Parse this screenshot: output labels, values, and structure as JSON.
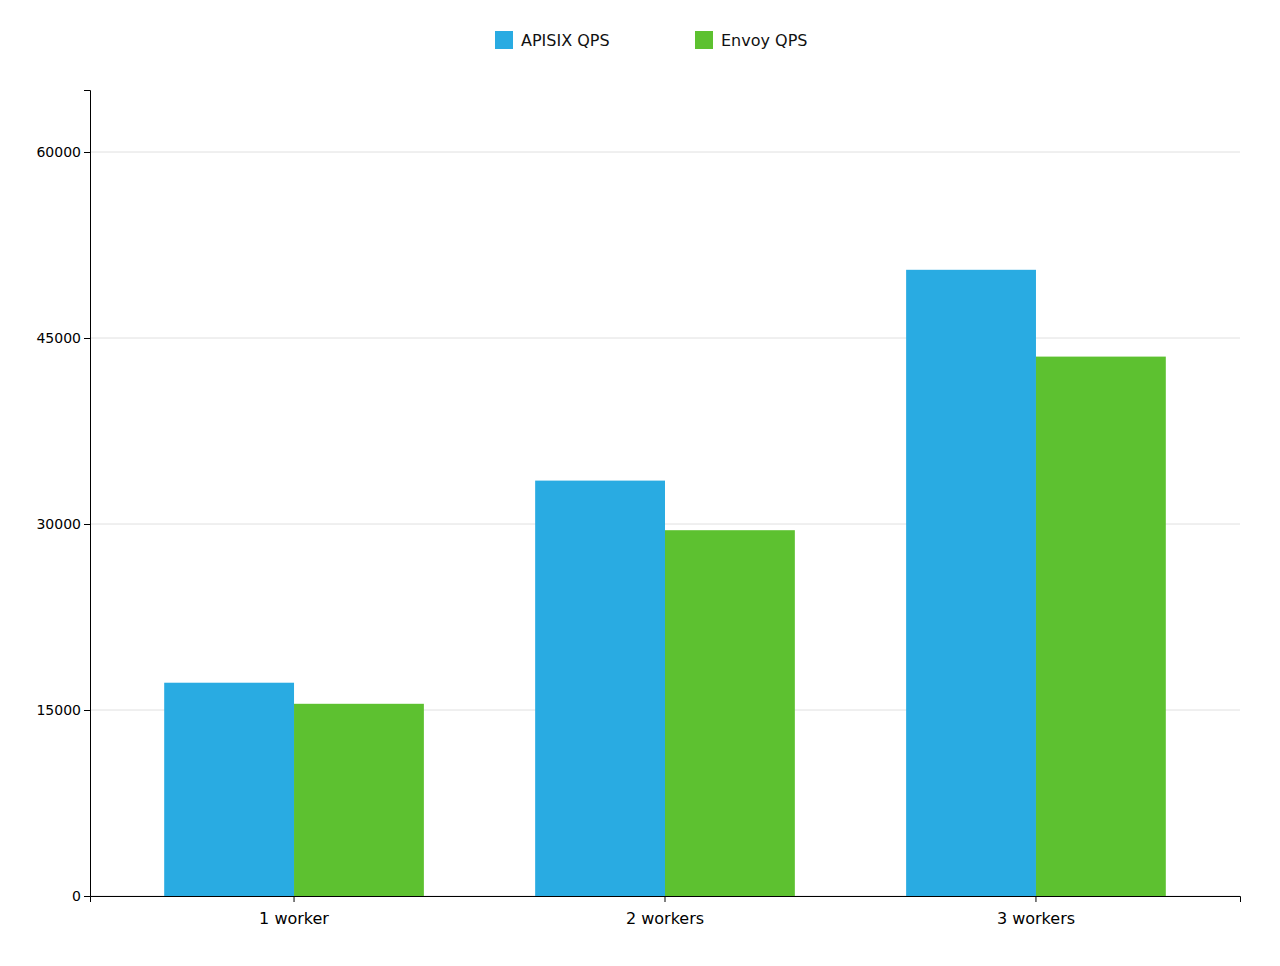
{
  "chart_data": {
    "type": "bar",
    "categories": [
      "1 worker",
      "2 workers",
      "3 workers"
    ],
    "series": [
      {
        "name": "APISIX QPS",
        "color": "#29ABE2",
        "values": [
          17200,
          33500,
          50500
        ]
      },
      {
        "name": "Envoy QPS",
        "color": "#5DC130",
        "values": [
          15500,
          29500,
          43500
        ]
      }
    ],
    "ylim": [
      0,
      65000
    ],
    "yticks": [
      0,
      15000,
      30000,
      45000,
      60000
    ],
    "grid": true,
    "legend": "top"
  }
}
